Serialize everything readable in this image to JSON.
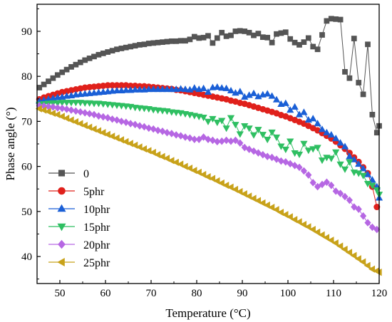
{
  "chart_data": {
    "type": "scatter",
    "xlabel": "Temperature (°C)",
    "ylabel": "Phase angle (°)",
    "xlim": [
      45,
      120
    ],
    "ylim": [
      34,
      96
    ],
    "xticks": [
      50,
      60,
      70,
      80,
      90,
      100,
      110,
      120
    ],
    "yticks": [
      40,
      50,
      60,
      70,
      80,
      90
    ],
    "grid": false,
    "legend_position": "bottom-left",
    "series": [
      {
        "name": "0",
        "marker": "square",
        "color": "#555555",
        "x": [
          45.5,
          46.5,
          47.5,
          48.5,
          49.5,
          50.5,
          51.5,
          52.5,
          53.5,
          54.5,
          55.5,
          56.5,
          57.5,
          58.5,
          59.5,
          60.5,
          61.5,
          62.5,
          63.5,
          64.5,
          65.5,
          66.5,
          67.5,
          68.5,
          69.5,
          70.5,
          71.5,
          72.5,
          73.5,
          74.5,
          75.5,
          76.5,
          77.5,
          78.5,
          79.5,
          80.5,
          81.5,
          82.5,
          83.5,
          84.5,
          85.5,
          86.5,
          87.5,
          88.5,
          89.5,
          90.5,
          91.5,
          92.5,
          93.5,
          94.5,
          95.5,
          96.5,
          97.5,
          98.5,
          99.5,
          100.5,
          101.5,
          102.5,
          103.5,
          104.5,
          105.5,
          106.5,
          107.5,
          108.5,
          109.5,
          110.5,
          111.5,
          112.5,
          113.5,
          114.5,
          115.5,
          116.5,
          117.5,
          118.5,
          119.5
        ],
        "y": [
          77.5,
          78.2,
          78.9,
          79.6,
          80.3,
          80.9,
          81.5,
          82.1,
          82.6,
          83.1,
          83.6,
          84.0,
          84.4,
          84.8,
          85.1,
          85.4,
          85.7,
          86.0,
          86.2,
          86.4,
          86.6,
          86.8,
          87.0,
          87.1,
          87.3,
          87.4,
          87.5,
          87.6,
          87.7,
          87.8,
          87.8,
          87.9,
          87.9,
          88.2,
          88.8,
          88.5,
          88.6,
          89.0,
          87.4,
          88.5,
          89.7,
          88.9,
          89.1,
          90.0,
          90.1,
          90.0,
          89.7,
          89.1,
          89.5,
          88.7,
          88.6,
          87.5,
          89.4,
          89.6,
          89.8,
          88.3,
          87.5,
          87.0,
          87.6,
          88.5,
          86.6,
          86.0,
          89.2,
          92.3,
          92.8,
          92.7,
          92.6,
          81.0,
          79.6,
          88.4,
          78.6,
          76.0,
          87.1,
          71.5,
          67.5
        ],
        "tail": {
          "x": 120,
          "y": 69
        }
      },
      {
        "name": "5phr",
        "marker": "circle",
        "color": "#e0201b",
        "x": [
          45.5,
          46.5,
          47.5,
          48.5,
          49.5,
          50.5,
          51.5,
          52.5,
          53.5,
          54.5,
          55.5,
          56.5,
          57.5,
          58.5,
          59.5,
          60.5,
          61.5,
          62.5,
          63.5,
          64.5,
          65.5,
          66.5,
          67.5,
          68.5,
          69.5,
          70.5,
          71.5,
          72.5,
          73.5,
          74.5,
          75.5,
          76.5,
          77.5,
          78.5,
          79.5,
          80.5,
          81.5,
          82.5,
          83.5,
          84.5,
          85.5,
          86.5,
          87.5,
          88.5,
          89.5,
          90.5,
          91.5,
          92.5,
          93.5,
          94.5,
          95.5,
          96.5,
          97.5,
          98.5,
          99.5,
          100.5,
          101.5,
          102.5,
          103.5,
          104.5,
          105.5,
          106.5,
          107.5,
          108.5,
          109.5,
          110.5,
          111.5,
          112.5,
          113.5,
          114.5,
          115.5,
          116.5,
          117.5,
          118.5,
          119.5
        ],
        "y": [
          74.9,
          75.3,
          75.6,
          75.9,
          76.2,
          76.5,
          76.7,
          76.9,
          77.1,
          77.3,
          77.5,
          77.6,
          77.7,
          77.8,
          77.9,
          78.0,
          78.0,
          78.0,
          78.0,
          78.0,
          77.9,
          77.9,
          77.8,
          77.8,
          77.7,
          77.6,
          77.5,
          77.4,
          77.3,
          77.2,
          77.0,
          76.9,
          76.7,
          76.5,
          76.3,
          76.1,
          75.9,
          75.7,
          75.5,
          75.3,
          75.1,
          74.9,
          74.6,
          74.4,
          74.1,
          73.9,
          73.6,
          73.3,
          73.0,
          72.7,
          72.4,
          72.1,
          71.8,
          71.4,
          71.1,
          70.7,
          70.3,
          69.9,
          69.5,
          69.0,
          68.5,
          68.0,
          67.4,
          66.8,
          66.2,
          65.5,
          64.7,
          63.9,
          63.0,
          62.0,
          61.0,
          59.8,
          58.5,
          55.5,
          51.0
        ],
        "tail": null
      },
      {
        "name": "10phr",
        "marker": "triangle-up",
        "color": "#1a5fd6",
        "x": [
          45.5,
          46.5,
          47.5,
          48.5,
          49.5,
          50.5,
          51.5,
          52.5,
          53.5,
          54.5,
          55.5,
          56.5,
          57.5,
          58.5,
          59.5,
          60.5,
          61.5,
          62.5,
          63.5,
          64.5,
          65.5,
          66.5,
          67.5,
          68.5,
          69.5,
          70.5,
          71.5,
          72.5,
          73.5,
          74.5,
          75.5,
          76.5,
          77.5,
          78.5,
          79.5,
          80.5,
          81.5,
          82.5,
          83.5,
          84.5,
          85.5,
          86.5,
          87.5,
          88.5,
          89.5,
          90.5,
          91.5,
          92.5,
          93.5,
          94.5,
          95.5,
          96.5,
          97.5,
          98.5,
          99.5,
          100.5,
          101.5,
          102.5,
          103.5,
          104.5,
          105.5,
          106.5,
          107.5,
          108.5,
          109.5,
          110.5,
          111.5,
          112.5,
          113.5,
          114.5,
          115.5,
          116.5,
          117.5,
          118.5,
          119.5
        ],
        "y": [
          74.5,
          74.7,
          74.9,
          75.1,
          75.3,
          75.4,
          75.6,
          75.7,
          75.9,
          76.0,
          76.1,
          76.2,
          76.3,
          76.4,
          76.5,
          76.6,
          76.7,
          76.8,
          76.8,
          76.9,
          76.9,
          77.0,
          77.0,
          77.0,
          77.1,
          77.1,
          77.1,
          77.1,
          77.1,
          77.1,
          77.1,
          77.2,
          77.1,
          77.0,
          77.4,
          77.1,
          77.3,
          76.5,
          77.5,
          77.6,
          77.4,
          77.3,
          76.8,
          76.3,
          76.6,
          75.4,
          75.8,
          76.2,
          75.5,
          75.9,
          76.1,
          75.6,
          74.8,
          73.8,
          74.0,
          72.5,
          73.2,
          71.5,
          72.0,
          70.3,
          70.6,
          69.5,
          68.2,
          67.5,
          67.0,
          66.2,
          65.2,
          64.4,
          62.2,
          61.5,
          60.5,
          59.5,
          58.2,
          57.0,
          55.5
        ],
        "tail": {
          "x": 120,
          "y": 53
        }
      },
      {
        "name": "15phr",
        "marker": "triangle-down",
        "color": "#2fbf62",
        "x": [
          45.5,
          46.5,
          47.5,
          48.5,
          49.5,
          50.5,
          51.5,
          52.5,
          53.5,
          54.5,
          55.5,
          56.5,
          57.5,
          58.5,
          59.5,
          60.5,
          61.5,
          62.5,
          63.5,
          64.5,
          65.5,
          66.5,
          67.5,
          68.5,
          69.5,
          70.5,
          71.5,
          72.5,
          73.5,
          74.5,
          75.5,
          76.5,
          77.5,
          78.5,
          79.5,
          80.5,
          81.5,
          82.5,
          83.5,
          84.5,
          85.5,
          86.5,
          87.5,
          88.5,
          89.5,
          90.5,
          91.5,
          92.5,
          93.5,
          94.5,
          95.5,
          96.5,
          97.5,
          98.5,
          99.5,
          100.5,
          101.5,
          102.5,
          103.5,
          104.5,
          105.5,
          106.5,
          107.5,
          108.5,
          109.5,
          110.5,
          111.5,
          112.5,
          113.5,
          114.5,
          115.5,
          116.5,
          117.5,
          118.5,
          119.5
        ],
        "y": [
          73.8,
          73.9,
          74.0,
          74.1,
          74.1,
          74.2,
          74.2,
          74.2,
          74.2,
          74.2,
          74.1,
          74.1,
          74.0,
          74.0,
          73.9,
          73.8,
          73.7,
          73.6,
          73.5,
          73.4,
          73.3,
          73.1,
          73.0,
          72.9,
          72.8,
          72.6,
          72.5,
          72.4,
          72.3,
          72.1,
          72.0,
          71.9,
          71.7,
          71.5,
          71.3,
          71.1,
          70.9,
          70.0,
          70.6,
          69.8,
          70.2,
          68.5,
          70.8,
          69.3,
          67.2,
          69.0,
          68.5,
          67.0,
          68.2,
          67.1,
          66.0,
          67.6,
          66.5,
          64.5,
          63.8,
          65.6,
          63.0,
          62.7,
          65.1,
          63.6,
          63.9,
          64.2,
          61.4,
          62.0,
          61.8,
          63.2,
          60.5,
          59.4,
          61.0,
          58.7,
          58.5,
          58.0,
          56.2,
          55.8,
          54.8
        ],
        "tail": {
          "x": 120,
          "y": 53.8
        }
      },
      {
        "name": "20phr",
        "marker": "diamond",
        "color": "#b667e3",
        "x": [
          45.5,
          46.5,
          47.5,
          48.5,
          49.5,
          50.5,
          51.5,
          52.5,
          53.5,
          54.5,
          55.5,
          56.5,
          57.5,
          58.5,
          59.5,
          60.5,
          61.5,
          62.5,
          63.5,
          64.5,
          65.5,
          66.5,
          67.5,
          68.5,
          69.5,
          70.5,
          71.5,
          72.5,
          73.5,
          74.5,
          75.5,
          76.5,
          77.5,
          78.5,
          79.5,
          80.5,
          81.5,
          82.5,
          83.5,
          84.5,
          85.5,
          86.5,
          87.5,
          88.5,
          89.5,
          90.5,
          91.5,
          92.5,
          93.5,
          94.5,
          95.5,
          96.5,
          97.5,
          98.5,
          99.5,
          100.5,
          101.5,
          102.5,
          103.5,
          104.5,
          105.5,
          106.5,
          107.5,
          108.5,
          109.5,
          110.5,
          111.5,
          112.5,
          113.5,
          114.5,
          115.5,
          116.5,
          117.5,
          118.5,
          119.5
        ],
        "y": [
          73.5,
          73.4,
          73.3,
          73.2,
          73.0,
          72.9,
          72.7,
          72.5,
          72.3,
          72.1,
          71.9,
          71.7,
          71.5,
          71.2,
          71.0,
          70.8,
          70.5,
          70.3,
          70.0,
          69.8,
          69.5,
          69.3,
          69.0,
          68.8,
          68.5,
          68.3,
          68.0,
          67.8,
          67.5,
          67.3,
          67.0,
          66.8,
          66.5,
          66.3,
          66.0,
          66.0,
          66.5,
          66.0,
          65.8,
          65.5,
          65.6,
          65.8,
          65.6,
          65.8,
          65.2,
          64.2,
          63.8,
          63.4,
          63.0,
          62.6,
          62.2,
          62.0,
          61.6,
          61.2,
          61.0,
          60.6,
          60.2,
          59.8,
          59.0,
          58.1,
          56.4,
          55.5,
          56.0,
          56.5,
          55.8,
          54.5,
          54.0,
          53.3,
          52.5,
          51.0,
          50.5,
          49.0,
          47.5,
          46.5,
          46.0
        ],
        "tail": null
      },
      {
        "name": "25phr",
        "marker": "triangle-left",
        "color": "#c8a21a",
        "x": [
          45.5,
          46.5,
          47.5,
          48.5,
          49.5,
          50.5,
          51.5,
          52.5,
          53.5,
          54.5,
          55.5,
          56.5,
          57.5,
          58.5,
          59.5,
          60.5,
          61.5,
          62.5,
          63.5,
          64.5,
          65.5,
          66.5,
          67.5,
          68.5,
          69.5,
          70.5,
          71.5,
          72.5,
          73.5,
          74.5,
          75.5,
          76.5,
          77.5,
          78.5,
          79.5,
          80.5,
          81.5,
          82.5,
          83.5,
          84.5,
          85.5,
          86.5,
          87.5,
          88.5,
          89.5,
          90.5,
          91.5,
          92.5,
          93.5,
          94.5,
          95.5,
          96.5,
          97.5,
          98.5,
          99.5,
          100.5,
          101.5,
          102.5,
          103.5,
          104.5,
          105.5,
          106.5,
          107.5,
          108.5,
          109.5,
          110.5,
          111.5,
          112.5,
          113.5,
          114.5,
          115.5,
          116.5,
          117.5,
          118.5,
          119.5
        ],
        "y": [
          72.8,
          72.5,
          72.2,
          71.8,
          71.5,
          71.1,
          70.7,
          70.3,
          69.9,
          69.5,
          69.1,
          68.7,
          68.3,
          67.9,
          67.5,
          67.1,
          66.7,
          66.3,
          65.9,
          65.5,
          65.1,
          64.7,
          64.3,
          63.9,
          63.5,
          63.1,
          62.6,
          62.2,
          61.8,
          61.3,
          60.9,
          60.5,
          60.0,
          59.6,
          59.1,
          58.7,
          58.2,
          57.7,
          57.3,
          56.8,
          56.3,
          55.8,
          55.4,
          54.9,
          54.4,
          53.9,
          53.4,
          52.9,
          52.4,
          51.9,
          51.4,
          50.9,
          50.4,
          49.8,
          49.3,
          48.8,
          48.2,
          47.7,
          47.1,
          46.6,
          46.0,
          45.4,
          44.8,
          44.2,
          43.6,
          43.0,
          42.3,
          41.6,
          40.9,
          40.2,
          39.5,
          38.8,
          38.0,
          37.2,
          36.8
        ],
        "tail": {
          "x": 120,
          "y": 36.5
        }
      }
    ]
  }
}
